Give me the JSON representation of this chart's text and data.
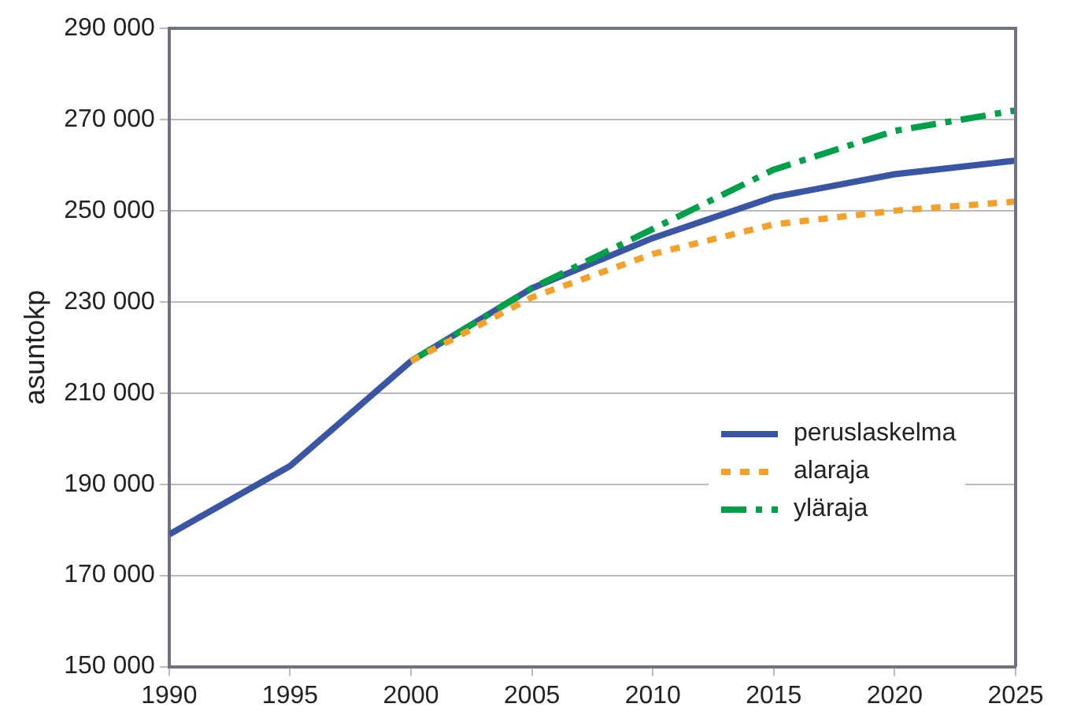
{
  "chart_data": {
    "type": "line",
    "ylabel": "asuntokp",
    "x": [
      1990,
      1995,
      2000,
      2005,
      2010,
      2015,
      2020,
      2025
    ],
    "series": [
      {
        "name": "peruslaskelma",
        "color": "#3a55a4",
        "line_style": "solid",
        "values": [
          179000,
          194000,
          217000,
          233000,
          244000,
          253000,
          258000,
          261000
        ]
      },
      {
        "name": "alaraja",
        "color": "#f4a12c",
        "line_style": "dotted",
        "values": [
          null,
          null,
          217000,
          231000,
          240500,
          247000,
          250000,
          252000
        ]
      },
      {
        "name": "yläraja",
        "color": "#00a04b",
        "line_style": "dashed",
        "values": [
          null,
          null,
          217000,
          233000,
          246000,
          259000,
          267500,
          272000
        ]
      }
    ],
    "xlim": [
      1990,
      2025
    ],
    "xticks": [
      1990,
      1995,
      2000,
      2005,
      2010,
      2015,
      2020,
      2025
    ],
    "ylim": [
      150000,
      290000
    ],
    "yticks": [
      {
        "value": 150000,
        "label": "150 000"
      },
      {
        "value": 170000,
        "label": "170 000"
      },
      {
        "value": 190000,
        "label": "190 000"
      },
      {
        "value": 210000,
        "label": "210 000"
      },
      {
        "value": 230000,
        "label": "230 000"
      },
      {
        "value": 250000,
        "label": "250 000"
      },
      {
        "value": 270000,
        "label": "270 000"
      },
      {
        "value": 290000,
        "label": "290 000"
      }
    ],
    "grid": "y",
    "legend": "right",
    "marker": "none"
  }
}
